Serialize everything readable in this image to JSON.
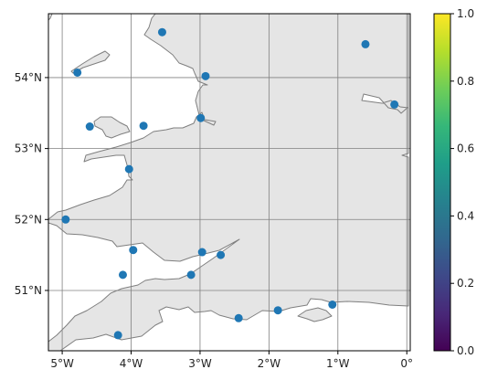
{
  "map": {
    "projection": "PlateCarree",
    "lon_range": [
      -5.2,
      0.05
    ],
    "lat_range": [
      50.15,
      54.9
    ],
    "gridlines": true,
    "land_color": "#e5e5e5",
    "coast_color": "#7f7f7f",
    "sea_color": "#ffffff",
    "grid_color": "#808080",
    "x_ticks": [
      {
        "lon": -5,
        "label": "5°W"
      },
      {
        "lon": -4,
        "label": "4°W"
      },
      {
        "lon": -3,
        "label": "3°W"
      },
      {
        "lon": -2,
        "label": "2°W"
      },
      {
        "lon": -1,
        "label": "1°W"
      },
      {
        "lon": 0,
        "label": "0°"
      }
    ],
    "y_ticks": [
      {
        "lat": 51,
        "label": "51°N"
      },
      {
        "lat": 52,
        "label": "52°N"
      },
      {
        "lat": 53,
        "label": "53°N"
      },
      {
        "lat": 54,
        "label": "54°N"
      }
    ]
  },
  "chart_data": {
    "type": "scatter",
    "marker_color": "#1f77b4",
    "points": [
      {
        "lon": -3.55,
        "lat": 54.64
      },
      {
        "lon": -4.78,
        "lat": 54.07
      },
      {
        "lon": -2.92,
        "lat": 54.02
      },
      {
        "lon": -0.6,
        "lat": 54.47
      },
      {
        "lon": -0.18,
        "lat": 53.62
      },
      {
        "lon": -2.99,
        "lat": 53.43
      },
      {
        "lon": -4.6,
        "lat": 53.31
      },
      {
        "lon": -3.82,
        "lat": 53.32
      },
      {
        "lon": -4.03,
        "lat": 52.71
      },
      {
        "lon": -4.95,
        "lat": 52.0
      },
      {
        "lon": -3.97,
        "lat": 51.57
      },
      {
        "lon": -2.97,
        "lat": 51.54
      },
      {
        "lon": -2.7,
        "lat": 51.5
      },
      {
        "lon": -4.12,
        "lat": 51.22
      },
      {
        "lon": -3.13,
        "lat": 51.22
      },
      {
        "lon": -4.19,
        "lat": 50.37
      },
      {
        "lon": -2.44,
        "lat": 50.61
      },
      {
        "lon": -1.87,
        "lat": 50.72
      },
      {
        "lon": -1.08,
        "lat": 50.8
      }
    ]
  },
  "colorbar": {
    "colormap": "viridis",
    "range": [
      0.0,
      1.0
    ],
    "stops": [
      "#440154",
      "#482878",
      "#3e4989",
      "#31688e",
      "#26828e",
      "#1f9e89",
      "#35b779",
      "#6ece58",
      "#b5de2b",
      "#fde725"
    ],
    "ticks": [
      {
        "value": 0.0,
        "label": "0.0"
      },
      {
        "value": 0.2,
        "label": "0.2"
      },
      {
        "value": 0.4,
        "label": "0.4"
      },
      {
        "value": 0.6,
        "label": "0.6"
      },
      {
        "value": 0.8,
        "label": "0.8"
      },
      {
        "value": 1.0,
        "label": "1.0"
      }
    ]
  }
}
